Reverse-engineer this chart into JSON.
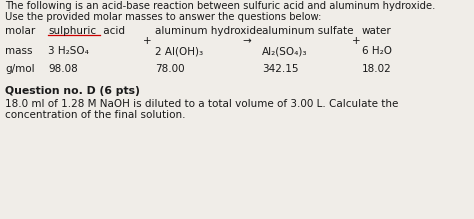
{
  "bg_color": "#f0ede8",
  "title_line1": "The following is an acid-base reaction between sulfuric acid and aluminum hydroxide.",
  "title_line2": "Use the provided molar masses to answer the questions below:",
  "col1_header_pre": "molar  ",
  "col1_header_word": "sulphuric",
  "col1_header_post": " acid",
  "col2_header": "aluminum hydroxide",
  "col3_header": "aluminum sulfate",
  "col4_header": "water",
  "col1_mass_label": "mass",
  "col1_mass": "3 H₂SO₄",
  "col2_mass": "2 Al(OH)₃",
  "col3_mass": "Al₂(SO₄)₃",
  "col4_mass": "6 H₂O",
  "col1_gmol_label": "g/mol",
  "col1_gmol": "98.08",
  "col2_gmol": "78.00",
  "col3_gmol": "342.15",
  "col4_gmol": "18.02",
  "question_header": "Question no. D (6 pts)",
  "question_body1": "18.0 ml of 1.28 M NaOH is diluted to a total volume of 3.00 L. Calculate the",
  "question_body2": "concentration of the final solution.",
  "text_color": "#1a1a1a",
  "underline_color": "#cc0000",
  "plus_sign": "+",
  "arrow_sign": "→",
  "fs_title": 7.2,
  "fs_body": 7.5,
  "fs_question": 7.5,
  "fs_question_header": 7.8
}
